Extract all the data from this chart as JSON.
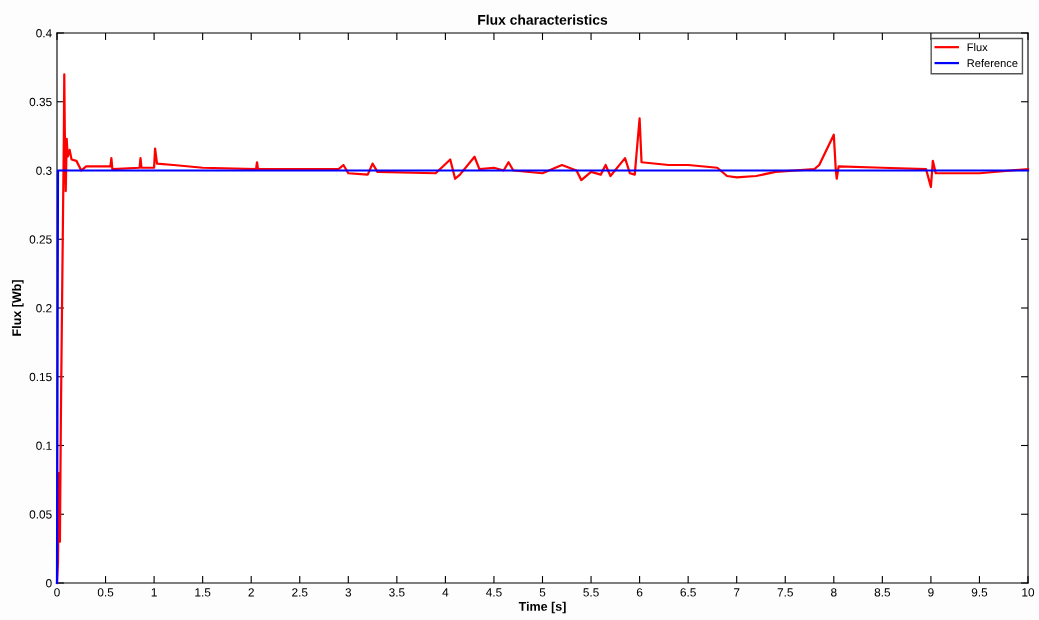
{
  "chart_data": {
    "type": "line",
    "title": "Flux characteristics",
    "xlabel": "Time [s]",
    "ylabel": "Flux [Wb]",
    "xlim": [
      0,
      10
    ],
    "ylim": [
      0,
      0.4
    ],
    "xticks": [
      0,
      0.5,
      1,
      1.5,
      2,
      2.5,
      3,
      3.5,
      4,
      4.5,
      5,
      5.5,
      6,
      6.5,
      7,
      7.5,
      8,
      8.5,
      9,
      9.5,
      10
    ],
    "yticks": [
      0,
      0.05,
      0.1,
      0.15,
      0.2,
      0.25,
      0.3,
      0.35,
      0.4
    ],
    "grid": false,
    "legend": "top right",
    "marker": "none",
    "line_style": "solid",
    "series": [
      {
        "name": "Flux",
        "color": "#ff0000",
        "x": [
          0,
          0.01,
          0.02,
          0.03,
          0.04,
          0.05,
          0.06,
          0.07,
          0.075,
          0.08,
          0.09,
          0.1,
          0.11,
          0.13,
          0.15,
          0.2,
          0.25,
          0.3,
          0.55,
          0.56,
          0.57,
          0.85,
          0.86,
          0.87,
          1.0,
          1.01,
          1.03,
          1.2,
          1.5,
          2.05,
          2.06,
          2.07,
          2.9,
          2.95,
          3.0,
          3.2,
          3.25,
          3.3,
          3.9,
          4.05,
          4.1,
          4.15,
          4.3,
          4.35,
          4.5,
          4.6,
          4.65,
          4.7,
          5.0,
          5.2,
          5.35,
          5.4,
          5.5,
          5.6,
          5.65,
          5.7,
          5.85,
          5.9,
          5.95,
          6.0,
          6.02,
          6.3,
          6.5,
          6.8,
          6.9,
          7.0,
          7.2,
          7.4,
          7.8,
          7.85,
          8.0,
          8.02,
          8.03,
          8.05,
          8.5,
          8.95,
          9.0,
          9.02,
          9.05,
          9.5,
          10
        ],
        "values": [
          0,
          0.015,
          0.08,
          0.03,
          0.12,
          0.19,
          0.255,
          0.32,
          0.37,
          0.33,
          0.285,
          0.323,
          0.31,
          0.315,
          0.308,
          0.307,
          0.3,
          0.303,
          0.303,
          0.309,
          0.301,
          0.302,
          0.309,
          0.302,
          0.302,
          0.316,
          0.305,
          0.304,
          0.302,
          0.301,
          0.306,
          0.301,
          0.301,
          0.304,
          0.298,
          0.297,
          0.305,
          0.299,
          0.298,
          0.308,
          0.294,
          0.297,
          0.31,
          0.301,
          0.302,
          0.3,
          0.306,
          0.3,
          0.298,
          0.304,
          0.3,
          0.293,
          0.299,
          0.297,
          0.304,
          0.296,
          0.309,
          0.298,
          0.297,
          0.338,
          0.306,
          0.304,
          0.304,
          0.302,
          0.296,
          0.295,
          0.296,
          0.299,
          0.301,
          0.304,
          0.326,
          0.301,
          0.294,
          0.303,
          0.302,
          0.301,
          0.288,
          0.307,
          0.298,
          0.298,
          0.301
        ]
      },
      {
        "name": "Reference",
        "color": "#0000ff",
        "x": [
          0,
          0.01,
          10
        ],
        "values": [
          0,
          0.3,
          0.3
        ]
      }
    ]
  }
}
